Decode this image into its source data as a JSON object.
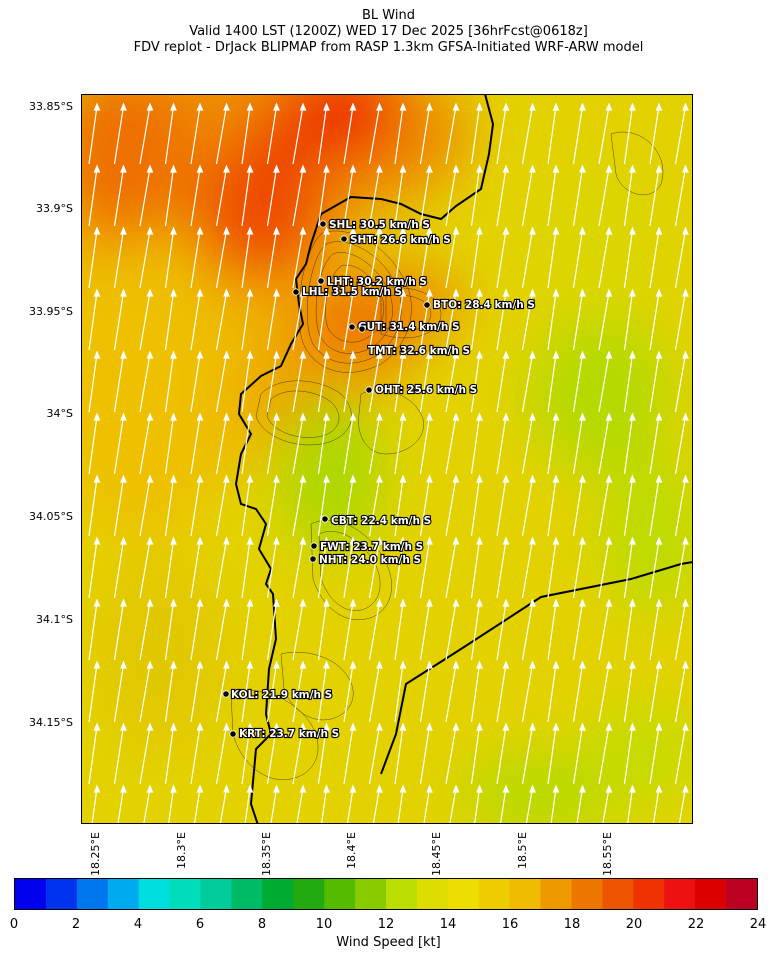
{
  "title": {
    "line1": "BL Wind",
    "line2": "Valid 1400 LST (1200Z) WED 17 Dec 2025 [36hrFcst@0618z]",
    "line3": "FDV replot - DrJack BLIPMAP from RASP 1.3km GFSA-Initiated WRF-ARW model"
  },
  "axes": {
    "lat_labels": [
      "33.85°S",
      "33.9°S",
      "33.95°S",
      "34°S",
      "34.05°S",
      "34.1°S",
      "34.15°S"
    ],
    "lon_labels": [
      "18.25°E",
      "18.3°E",
      "18.35°E",
      "18.4°E",
      "18.45°E",
      "18.5°E",
      "18.55°E"
    ]
  },
  "stations": [
    {
      "id": "SHL",
      "label": "SHL: 30.5 km/h S"
    },
    {
      "id": "SHT",
      "label": "SHT: 26.6 km/h S"
    },
    {
      "id": "LHT",
      "label": "LHT: 30.2 km/h S"
    },
    {
      "id": "LHL",
      "label": "LHL: 31.5 km/h S"
    },
    {
      "id": "BTO",
      "label": "BTO: 28.4 km/h S"
    },
    {
      "id": "GUT",
      "label": "GUT: 31.4 km/h S"
    },
    {
      "id": "TMT",
      "label": "TMT: 32.6 km/h S"
    },
    {
      "id": "OHT",
      "label": "OHT: 25.6 km/h S"
    },
    {
      "id": "CBT",
      "label": "CBT: 22.4 km/h S"
    },
    {
      "id": "FWT",
      "label": "FWT: 23.7 km/h S"
    },
    {
      "id": "NHT",
      "label": "NHT: 24.0 km/h S"
    },
    {
      "id": "KOL",
      "label": "KOL: 21.9 km/h S"
    },
    {
      "id": "KRT",
      "label": "KRT: 23.7 km/h S"
    }
  ],
  "colorbar": {
    "label": "Wind Speed [kt]",
    "ticks": [
      "0",
      "2",
      "4",
      "6",
      "8",
      "10",
      "12",
      "14",
      "16",
      "18",
      "20",
      "22",
      "24"
    ],
    "min": 0,
    "max": 24,
    "colors": [
      "#0000ee",
      "#0033ee",
      "#0077ee",
      "#00aaee",
      "#00dddd",
      "#00ddbb",
      "#00cc99",
      "#00bb66",
      "#00aa33",
      "#22aa11",
      "#55bb00",
      "#88cc00",
      "#bbdd00",
      "#dddd00",
      "#eedd00",
      "#eecc00",
      "#eebb00",
      "#ee9900",
      "#ee7700",
      "#ee5500",
      "#ee3300",
      "#ee1111",
      "#dd0000",
      "#bb0022"
    ]
  }
}
